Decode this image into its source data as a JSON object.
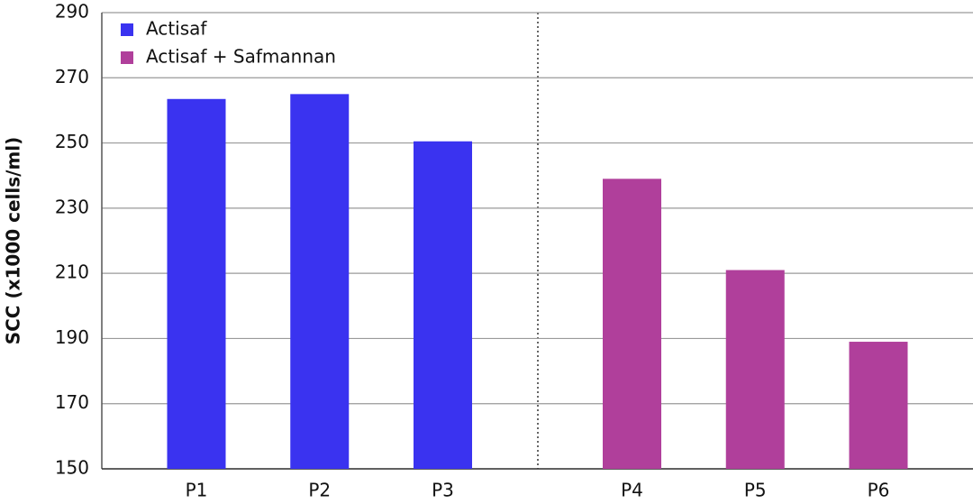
{
  "chart_data": {
    "type": "bar",
    "ylabel": "SCC (x1000 cells/ml)",
    "categories": [
      "P1",
      "P2",
      "P3",
      "P4",
      "P5",
      "P6"
    ],
    "series": [
      {
        "name": "Actisaf",
        "color": "#3a33f0",
        "values": [
          263.5,
          265,
          250.5,
          null,
          null,
          null
        ]
      },
      {
        "name": "Actisaf + Safmannan",
        "color": "#b03f9b",
        "values": [
          null,
          null,
          null,
          239,
          211,
          189
        ]
      }
    ],
    "ylim": [
      150,
      290
    ],
    "yticks": [
      150,
      170,
      190,
      210,
      230,
      250,
      270,
      290
    ],
    "grid": true,
    "legend": "upper left"
  }
}
